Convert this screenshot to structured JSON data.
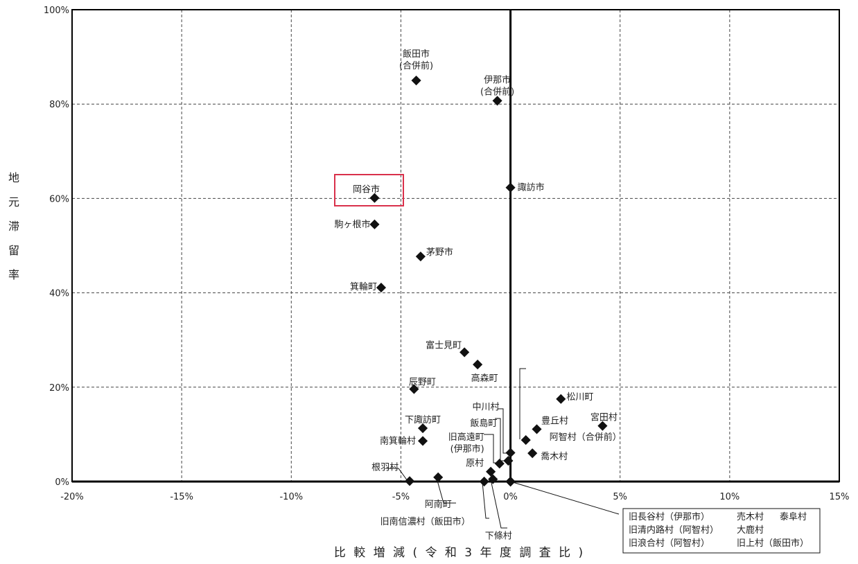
{
  "chart_data": {
    "type": "scatter",
    "title": "",
    "xlabel": "比 較 増 減 ( 令 和 3 年 度 調 査 比 )",
    "ylabel": "地元滞留率",
    "xlim": [
      -20,
      15
    ],
    "ylim": [
      0,
      100
    ],
    "grid": true,
    "x_ticks": [
      -20,
      -15,
      -10,
      -5,
      0,
      5,
      10,
      15
    ],
    "y_ticks": [
      0,
      20,
      40,
      60,
      80,
      100
    ],
    "x_tick_labels": [
      "-20%",
      "-15%",
      "-10%",
      "-5%",
      "0%",
      "5%",
      "10%",
      "15%"
    ],
    "y_tick_labels": [
      "0%",
      "20%",
      "40%",
      "60%",
      "80%",
      "100%"
    ],
    "points": [
      {
        "label": "飯田市\n(合併前)",
        "x": -4.3,
        "y": 85
      },
      {
        "label": "伊那市\n(合併前)",
        "x": -0.6,
        "y": 80.7
      },
      {
        "label": "諏訪市",
        "x": 0.0,
        "y": 62.3
      },
      {
        "label": "岡谷市",
        "x": -6.2,
        "y": 60.1,
        "highlight": true
      },
      {
        "label": "駒ヶ根市",
        "x": -6.2,
        "y": 54.5
      },
      {
        "label": "茅野市",
        "x": -4.1,
        "y": 47.7
      },
      {
        "label": "箕輪町",
        "x": -5.9,
        "y": 41.1
      },
      {
        "label": "富士見町",
        "x": -2.1,
        "y": 27.4
      },
      {
        "label": "高森町",
        "x": -1.5,
        "y": 24.8
      },
      {
        "label": "阿智村（合併前）",
        "x": 0.7,
        "y": 8.8
      },
      {
        "label": "辰野町",
        "x": -4.4,
        "y": 19.6
      },
      {
        "label": "松川町",
        "x": 2.3,
        "y": 17.5
      },
      {
        "label": "宮田村",
        "x": 4.2,
        "y": 11.8
      },
      {
        "label": "豊丘村",
        "x": 1.2,
        "y": 11.1
      },
      {
        "label": "下諏訪町",
        "x": -4.0,
        "y": 11.3
      },
      {
        "label": "南箕輪村",
        "x": -4.0,
        "y": 8.6
      },
      {
        "label": "中川村",
        "x": 0.0,
        "y": 6.1
      },
      {
        "label": "飯島町",
        "x": -0.1,
        "y": 4.4
      },
      {
        "label": "旧高遠町\n(伊那市)",
        "x": -0.5,
        "y": 3.8
      },
      {
        "label": "喬木村",
        "x": 1.0,
        "y": 6.0
      },
      {
        "label": "原村",
        "x": -0.9,
        "y": 2.1
      },
      {
        "label": "根羽村",
        "x": -4.6,
        "y": 0.1
      },
      {
        "label": "阿南町",
        "x": -3.3,
        "y": 0.9
      },
      {
        "label": "旧南信濃村（飯田市）",
        "x": -1.2,
        "y": 0.0
      },
      {
        "label": "下條村",
        "x": -0.8,
        "y": 0.5
      },
      {
        "label": "旧長谷村（伊那市）",
        "x": 0.0,
        "y": 0.0
      },
      {
        "label": "売木村",
        "x": 0.0,
        "y": 0.0
      },
      {
        "label": "泰阜村",
        "x": 0.0,
        "y": 0.0
      },
      {
        "label": "旧清内路村（阿智村）",
        "x": 0.0,
        "y": 0.0
      },
      {
        "label": "大鹿村",
        "x": 0.0,
        "y": 0.0
      },
      {
        "label": "旧浪合村（阿智村）",
        "x": 0.0,
        "y": 0.0
      },
      {
        "label": "旧上村（飯田市）",
        "x": 0.0,
        "y": 0.0
      }
    ],
    "origin_box": [
      [
        "旧長谷村（伊那市）",
        "売木村",
        "泰阜村"
      ],
      [
        "旧清内路村（阿智村）",
        "大鹿村"
      ],
      [
        "旧浪合村（阿智村）",
        "旧上村（飯田市）"
      ]
    ],
    "colors": {
      "marker": "#111111",
      "highlight": "#d9304a",
      "grid": "#444444",
      "axis": "#000000"
    }
  }
}
